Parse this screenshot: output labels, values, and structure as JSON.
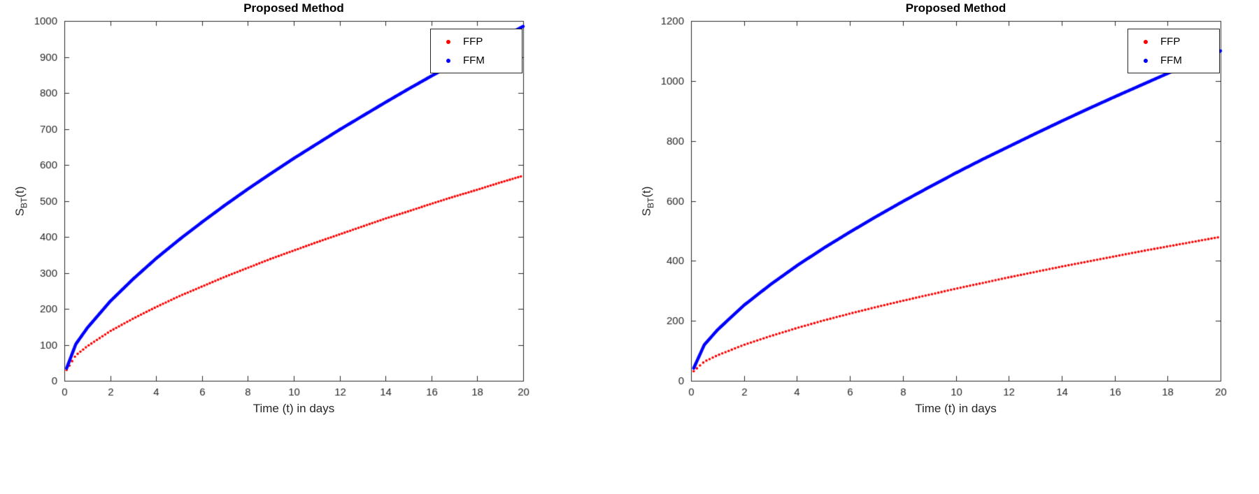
{
  "chart_data": [
    {
      "type": "scatter",
      "title": "Proposed Method",
      "xlabel": "Time (t) in days",
      "ylabel": {
        "main": "S",
        "sub": "BT",
        "rest": "(t)"
      },
      "xlim": [
        0,
        20
      ],
      "ylim": [
        0,
        1000
      ],
      "xticks": [
        0,
        2,
        4,
        6,
        8,
        10,
        12,
        14,
        16,
        18,
        20
      ],
      "yticks": [
        0,
        100,
        200,
        300,
        400,
        500,
        600,
        700,
        800,
        900,
        1000
      ],
      "grid": false,
      "legend_position": "top-right",
      "x": [
        0.1,
        0.5,
        1,
        2,
        3,
        4,
        5,
        6,
        7,
        8,
        9,
        10,
        11,
        12,
        13,
        14,
        15,
        16,
        17,
        18,
        19,
        20
      ],
      "series": [
        {
          "name": "FFP",
          "color": "#ff0000",
          "style": "dots",
          "values": [
            30,
            71,
            96,
            138,
            173,
            205,
            235,
            262,
            289,
            314,
            339,
            362,
            385,
            407,
            429,
            451,
            471,
            492,
            512,
            531,
            551,
            570
          ]
        },
        {
          "name": "FFM",
          "color": "#0000ff",
          "style": "line",
          "values": [
            35,
            102,
            147,
            221,
            283,
            340,
            392,
            441,
            488,
            533,
            576,
            618,
            658,
            698,
            736,
            774,
            811,
            847,
            882,
            917,
            951,
            985
          ]
        }
      ]
    },
    {
      "type": "scatter",
      "title": "Proposed Method",
      "xlabel": "Time (t) in days",
      "ylabel": {
        "main": "S",
        "sub": "BT",
        "rest": "(t)"
      },
      "xlim": [
        0,
        20
      ],
      "ylim": [
        0,
        1200
      ],
      "xticks": [
        0,
        2,
        4,
        6,
        8,
        10,
        12,
        14,
        16,
        18,
        20
      ],
      "yticks": [
        0,
        200,
        400,
        600,
        800,
        1000,
        1200
      ],
      "grid": false,
      "legend_position": "top-right",
      "x": [
        0.1,
        0.5,
        1,
        2,
        3,
        4,
        5,
        6,
        7,
        8,
        9,
        10,
        11,
        12,
        13,
        14,
        15,
        16,
        17,
        18,
        19,
        20
      ],
      "series": [
        {
          "name": "FFP",
          "color": "#ff0000",
          "style": "dots",
          "values": [
            32,
            64,
            85,
            120,
            149,
            176,
            201,
            224,
            246,
            267,
            287,
            307,
            326,
            345,
            363,
            381,
            398,
            415,
            432,
            448,
            464,
            480
          ]
        },
        {
          "name": "FFM",
          "color": "#0000ff",
          "style": "line",
          "values": [
            42,
            120,
            170,
            252,
            321,
            384,
            442,
            496,
            548,
            598,
            646,
            693,
            738,
            781,
            824,
            866,
            907,
            947,
            986,
            1025,
            1063,
            1100
          ]
        }
      ]
    }
  ]
}
